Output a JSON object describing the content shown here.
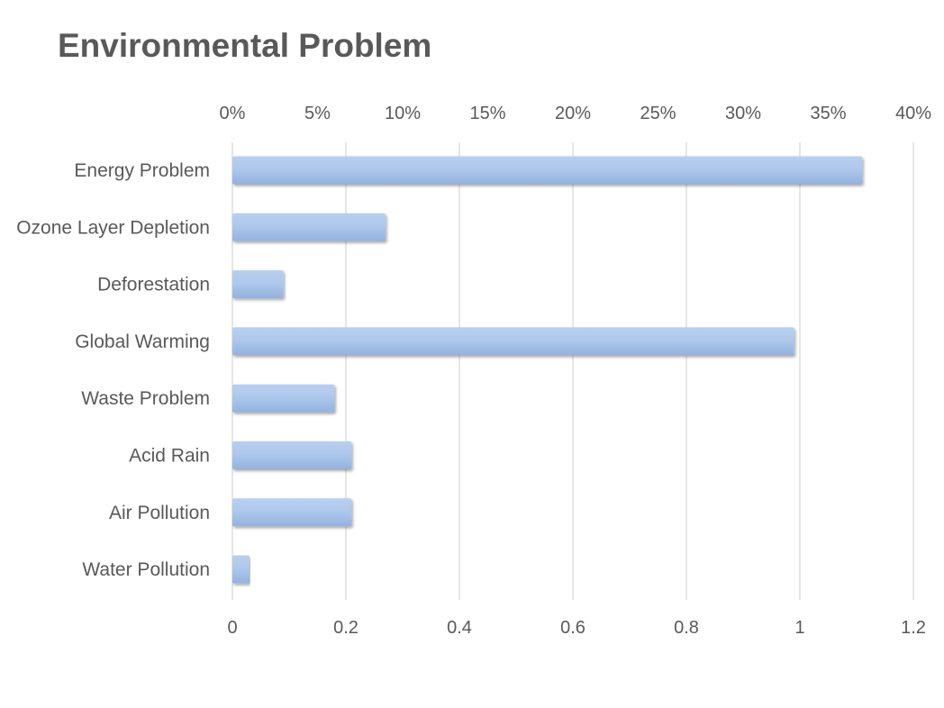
{
  "chart_data": {
    "type": "bar",
    "orientation": "horizontal",
    "title": "Environmental Problem",
    "categories": [
      "Energy Problem",
      "Ozone Layer Depletion",
      "Deforestation",
      "Global Warming",
      "Waste Problem",
      "Acid Rain",
      "Air Pollution",
      "Water Pollution"
    ],
    "values": [
      1.11,
      0.27,
      0.09,
      0.99,
      0.18,
      0.21,
      0.21,
      0.03
    ],
    "xlim": [
      0,
      1.2
    ],
    "x_ticks": [
      "0",
      "0.2",
      "0.4",
      "0.6",
      "0.8",
      "1",
      "1.2"
    ],
    "x2lim": [
      0,
      0.4
    ],
    "x2_ticks": [
      "0%",
      "5%",
      "10%",
      "15%",
      "20%",
      "25%",
      "30%",
      "35%",
      "40%"
    ],
    "grid": true,
    "legend": "none",
    "bar_color": "#a9c4ea"
  }
}
